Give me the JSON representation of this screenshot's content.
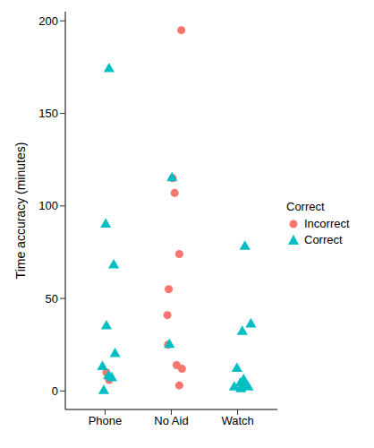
{
  "chart_data": {
    "type": "scatter",
    "y_label": "Time accuracy (minutes)",
    "legend_title": "Correct",
    "legend": "right",
    "grid": false,
    "xlim": [
      0.4,
      3.6
    ],
    "xticks": [
      {
        "value": 1,
        "label": "Phone"
      },
      {
        "value": 2,
        "label": "No Aid"
      },
      {
        "value": 3,
        "label": "Watch"
      }
    ],
    "ylim": [
      -10,
      205
    ],
    "yticks": [
      0,
      50,
      100,
      150,
      200
    ],
    "series": [
      {
        "name": "Incorrect",
        "color": "#F8766D",
        "marker": "circle",
        "x": [
          1.02,
          1.06,
          2.15,
          2.02,
          2.05,
          2.12,
          1.96,
          1.94,
          1.95,
          2.08,
          2.16,
          2.12
        ],
        "values": [
          10,
          6,
          195,
          115,
          107,
          74,
          55,
          41,
          25,
          14,
          12,
          3
        ]
      },
      {
        "name": "Correct",
        "color": "#00BFC4",
        "marker": "triangle",
        "x": [
          1.06,
          1.01,
          1.13,
          1.02,
          1.15,
          0.96,
          1.05,
          1.1,
          0.98,
          2.01,
          1.97,
          3.11,
          3.2,
          3.07,
          2.99,
          3.09,
          3.04,
          3.12,
          2.95,
          3.16,
          3.05
        ],
        "values": [
          174,
          90,
          68,
          35,
          20,
          13,
          8,
          7,
          0,
          115,
          25,
          78,
          36,
          32,
          12,
          6,
          4,
          3,
          2,
          2,
          1
        ]
      }
    ]
  }
}
